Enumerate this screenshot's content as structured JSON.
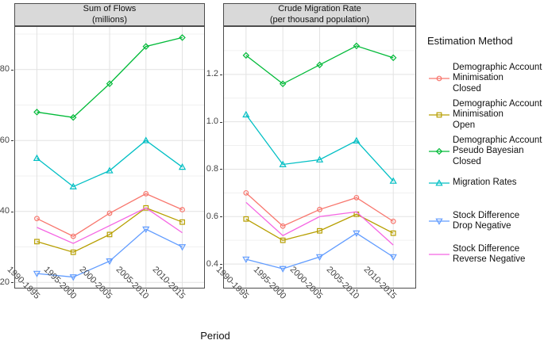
{
  "figure": {
    "x_axis_title": "Period",
    "legend": {
      "title": "Estimation Method",
      "items": [
        {
          "label": "Demographic Account\nMinimisation\nClosed"
        },
        {
          "label": "Demographic Account\nMinimisation\nOpen"
        },
        {
          "label": "Demographic Account\nPseudo Bayesian\nClosed"
        },
        {
          "label": "Migration Rates"
        },
        {
          "label": "Stock Difference\nDrop Negative"
        },
        {
          "label": "Stock Difference\nReverse Negative"
        }
      ]
    }
  },
  "chart_data": {
    "type": "line",
    "xlabel": "Period",
    "categories": [
      "1990-1995",
      "1995-2000",
      "2000-2005",
      "2005-2010",
      "2010-2015"
    ],
    "legend_position": "right",
    "grid": "on",
    "facets": [
      {
        "strip": "Sum of Flows\n(millions)",
        "ylim": [
          18.5,
          92
        ],
        "yticks": [
          20,
          40,
          60,
          80
        ],
        "ytick_labels": [
          "20",
          "40",
          "60",
          "80"
        ],
        "yminor": [
          30,
          50,
          70,
          90
        ]
      },
      {
        "strip": "Crude Migration Rate\n(per thousand population)",
        "ylim": [
          0.3,
          1.4
        ],
        "yticks": [
          0.4,
          0.6,
          0.8,
          1.0,
          1.2
        ],
        "ytick_labels": [
          "0.4",
          "0.6",
          "0.8",
          "1.0",
          "1.2"
        ],
        "yminor": [
          0.5,
          0.7,
          0.9,
          1.1,
          1.3
        ]
      }
    ],
    "series": [
      {
        "name": "Demographic Account Minimisation Closed",
        "color": "#F8766D",
        "marker": "circle",
        "facet_values": [
          [
            38,
            33,
            39.5,
            45,
            40.5
          ],
          [
            0.7,
            0.56,
            0.63,
            0.68,
            0.58
          ]
        ]
      },
      {
        "name": "Demographic Account Minimisation Open",
        "color": "#B79F00",
        "marker": "square",
        "facet_values": [
          [
            31.5,
            28.5,
            33.5,
            41,
            37
          ],
          [
            0.59,
            0.5,
            0.54,
            0.61,
            0.53
          ]
        ]
      },
      {
        "name": "Demographic Account Pseudo Bayesian Closed",
        "color": "#00BA38",
        "marker": "diamond",
        "facet_values": [
          [
            68,
            66.5,
            76,
            86.5,
            89
          ],
          [
            1.28,
            1.16,
            1.24,
            1.32,
            1.27
          ]
        ]
      },
      {
        "name": "Migration Rates",
        "color": "#00BFC4",
        "marker": "triangle-up",
        "facet_values": [
          [
            55,
            47,
            51.5,
            60,
            52.5
          ],
          [
            1.03,
            0.82,
            0.84,
            0.92,
            0.75
          ]
        ]
      },
      {
        "name": "Stock Difference Drop Negative",
        "color": "#619CFF",
        "marker": "triangle-down",
        "facet_values": [
          [
            22.5,
            21.5,
            26,
            35,
            30
          ],
          [
            0.42,
            0.38,
            0.43,
            0.53,
            0.43
          ]
        ]
      },
      {
        "name": "Stock Difference Reverse Negative",
        "color": "#F564E3",
        "marker": "none",
        "facet_values": [
          [
            35.5,
            31,
            36,
            41,
            34
          ],
          [
            0.66,
            0.52,
            0.6,
            0.62,
            0.48
          ]
        ]
      }
    ]
  }
}
